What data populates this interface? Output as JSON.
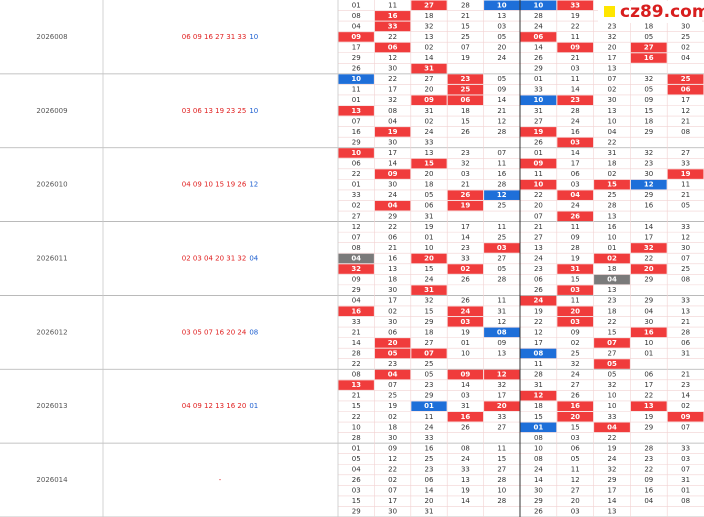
{
  "logo": "cz89.com",
  "draws": [
    {
      "issue": "2026008",
      "red": "06 09 16 27 31 33",
      "blue": "10",
      "rows": [
        [
          "01",
          "11",
          {
            "text": "27",
            "fill": "red"
          },
          "28",
          {
            "text": "10",
            "fill": "blue"
          },
          {
            "text": "10",
            "fill": "blue"
          },
          {
            "text": "33",
            "fill": "red"
          },
          null,
          null,
          null
        ],
        [
          "08",
          {
            "text": "16",
            "fill": "red"
          },
          "18",
          "21",
          "13",
          "28",
          "19",
          null,
          null,
          null
        ],
        [
          "04",
          {
            "text": "33",
            "fill": "red"
          },
          "32",
          "15",
          "03",
          "24",
          "22",
          "23",
          "18",
          "30"
        ],
        [
          {
            "text": "09",
            "fill": "red"
          },
          "22",
          "13",
          "25",
          "05",
          {
            "text": "06",
            "fill": "red"
          },
          "11",
          "32",
          "05",
          "25"
        ],
        [
          "17",
          {
            "text": "06",
            "fill": "red"
          },
          "02",
          "07",
          "20",
          "14",
          {
            "text": "09",
            "fill": "red"
          },
          "20",
          {
            "text": "27",
            "fill": "red"
          },
          "02"
        ],
        [
          "29",
          "12",
          "14",
          "19",
          "24",
          "26",
          "21",
          "17",
          {
            "text": "16",
            "fill": "red"
          },
          "04"
        ],
        [
          "26",
          "30",
          {
            "text": "31",
            "fill": "red"
          },
          null,
          null,
          "29",
          "03",
          "13",
          null,
          null
        ]
      ]
    },
    {
      "issue": "2026009",
      "red": "03 06 13 19 23 25",
      "blue": "10",
      "rows": [
        [
          {
            "text": "10",
            "fill": "blue"
          },
          "22",
          "27",
          {
            "text": "23",
            "fill": "red"
          },
          "05",
          "01",
          "11",
          "07",
          "32",
          {
            "text": "25",
            "fill": "red"
          }
        ],
        [
          "11",
          "17",
          "20",
          {
            "text": "25",
            "fill": "red"
          },
          "09",
          "33",
          "14",
          "02",
          "05",
          {
            "text": "06",
            "fill": "red"
          }
        ],
        [
          "01",
          "32",
          {
            "text": "09",
            "fill": "red"
          },
          {
            "text": "06",
            "fill": "red"
          },
          "14",
          {
            "text": "10",
            "fill": "blue"
          },
          {
            "text": "23",
            "fill": "red"
          },
          "30",
          "09",
          "17"
        ],
        [
          {
            "text": "13",
            "fill": "red"
          },
          "08",
          "31",
          "18",
          "21",
          "31",
          "28",
          "13",
          "15",
          "12"
        ],
        [
          "07",
          "04",
          "02",
          "15",
          "12",
          "27",
          "24",
          "10",
          "18",
          "21"
        ],
        [
          "16",
          {
            "text": "19",
            "fill": "red"
          },
          "24",
          "26",
          "28",
          {
            "text": "19",
            "fill": "red"
          },
          "16",
          "04",
          "29",
          "08"
        ],
        [
          "29",
          "30",
          "33",
          null,
          null,
          "26",
          {
            "text": "03",
            "fill": "red"
          },
          "22",
          null,
          null
        ]
      ]
    },
    {
      "issue": "2026010",
      "red": "04 09 10 15 19 26",
      "blue": "12",
      "rows": [
        [
          {
            "text": "10",
            "fill": "red"
          },
          "17",
          "13",
          "23",
          "07",
          "01",
          "14",
          "31",
          "32",
          "27"
        ],
        [
          "06",
          "14",
          {
            "text": "15",
            "fill": "red"
          },
          "32",
          "11",
          {
            "text": "09",
            "fill": "red"
          },
          "17",
          "18",
          "23",
          "33"
        ],
        [
          "22",
          {
            "text": "09",
            "fill": "red"
          },
          "20",
          "03",
          "16",
          "11",
          "06",
          "02",
          "30",
          {
            "text": "19",
            "fill": "red"
          }
        ],
        [
          "01",
          "30",
          "18",
          "21",
          "28",
          {
            "text": "10",
            "fill": "red"
          },
          "03",
          {
            "text": "15",
            "fill": "red"
          },
          {
            "text": "12",
            "fill": "blue"
          },
          "11"
        ],
        [
          "33",
          "24",
          "05",
          {
            "text": "26",
            "fill": "red"
          },
          {
            "text": "12",
            "fill": "blue"
          },
          "22",
          {
            "text": "04",
            "fill": "red"
          },
          "25",
          "29",
          "21"
        ],
        [
          "02",
          {
            "text": "04",
            "fill": "red"
          },
          "06",
          {
            "text": "19",
            "fill": "red"
          },
          "25",
          "20",
          "24",
          "28",
          "16",
          "05"
        ],
        [
          "27",
          "29",
          "31",
          null,
          null,
          "07",
          {
            "text": "26",
            "fill": "red"
          },
          "13",
          null,
          null
        ]
      ]
    },
    {
      "issue": "2026011",
      "red": "02 03 04 20 31 32",
      "blue": "04",
      "rows": [
        [
          "12",
          "22",
          "19",
          "17",
          "11",
          "21",
          "11",
          "16",
          "14",
          "33"
        ],
        [
          "07",
          "06",
          "01",
          "14",
          "25",
          "27",
          "09",
          "10",
          "17",
          "12"
        ],
        [
          "08",
          "21",
          "10",
          "23",
          {
            "text": "03",
            "fill": "red"
          },
          "13",
          "28",
          "01",
          {
            "text": "32",
            "fill": "red"
          },
          "30"
        ],
        [
          {
            "text": "04",
            "fill": "gray"
          },
          "16",
          {
            "text": "20",
            "fill": "red"
          },
          "33",
          "27",
          "24",
          "19",
          {
            "text": "02",
            "fill": "red"
          },
          "22",
          "07"
        ],
        [
          {
            "text": "32",
            "fill": "red"
          },
          "13",
          "15",
          {
            "text": "02",
            "fill": "red"
          },
          "05",
          "23",
          {
            "text": "31",
            "fill": "red"
          },
          "18",
          {
            "text": "20",
            "fill": "red"
          },
          "25"
        ],
        [
          "09",
          "18",
          "24",
          "26",
          "28",
          "06",
          "15",
          {
            "text": "04",
            "fill": "gray"
          },
          "29",
          "08"
        ],
        [
          "29",
          "30",
          {
            "text": "31",
            "fill": "red"
          },
          null,
          null,
          "26",
          {
            "text": "03",
            "fill": "red"
          },
          "13",
          null,
          null
        ]
      ]
    },
    {
      "issue": "2026012",
      "red": "03 05 07 16 20 24",
      "blue": "08",
      "rows": [
        [
          "04",
          "17",
          "32",
          "26",
          "11",
          {
            "text": "24",
            "fill": "red"
          },
          "11",
          "23",
          "29",
          "33"
        ],
        [
          {
            "text": "16",
            "fill": "red"
          },
          "02",
          "15",
          {
            "text": "24",
            "fill": "red"
          },
          "31",
          "19",
          {
            "text": "20",
            "fill": "red"
          },
          "18",
          "04",
          "13"
        ],
        [
          "33",
          "30",
          "29",
          {
            "text": "03",
            "fill": "red"
          },
          "12",
          "22",
          {
            "text": "03",
            "fill": "red"
          },
          "22",
          "30",
          "21"
        ],
        [
          "21",
          "06",
          "18",
          "19",
          {
            "text": "08",
            "fill": "blue"
          },
          "12",
          "09",
          "15",
          {
            "text": "16",
            "fill": "red"
          },
          "28"
        ],
        [
          "14",
          {
            "text": "20",
            "fill": "red"
          },
          "27",
          "01",
          "09",
          "17",
          "02",
          {
            "text": "07",
            "fill": "red"
          },
          "10",
          "06"
        ],
        [
          "28",
          {
            "text": "05",
            "fill": "red"
          },
          {
            "text": "07",
            "fill": "red"
          },
          "10",
          "13",
          {
            "text": "08",
            "fill": "blue"
          },
          "25",
          "27",
          "01",
          "31"
        ],
        [
          "22",
          "23",
          "25",
          null,
          null,
          "11",
          "32",
          {
            "text": "05",
            "fill": "red"
          },
          null,
          null
        ]
      ]
    },
    {
      "issue": "2026013",
      "red": "04 09 12 13 16 20",
      "blue": "01",
      "rows": [
        [
          "08",
          {
            "text": "04",
            "fill": "red"
          },
          "05",
          {
            "text": "09",
            "fill": "red"
          },
          {
            "text": "12",
            "fill": "red"
          },
          "28",
          "24",
          "05",
          "06",
          "21"
        ],
        [
          {
            "text": "13",
            "fill": "red"
          },
          "07",
          "23",
          "14",
          "32",
          "31",
          "27",
          "32",
          "17",
          "23"
        ],
        [
          "21",
          "25",
          "29",
          "03",
          "17",
          {
            "text": "12",
            "fill": "red"
          },
          "26",
          "10",
          "22",
          "14"
        ],
        [
          "15",
          "19",
          {
            "text": "01",
            "fill": "blue"
          },
          "31",
          {
            "text": "20",
            "fill": "red"
          },
          "18",
          {
            "text": "16",
            "fill": "red"
          },
          "10",
          {
            "text": "13",
            "fill": "red"
          },
          "02"
        ],
        [
          "22",
          "02",
          "11",
          {
            "text": "16",
            "fill": "red"
          },
          "33",
          "15",
          {
            "text": "20",
            "fill": "red"
          },
          "33",
          "19",
          {
            "text": "09",
            "fill": "red"
          }
        ],
        [
          "10",
          "18",
          "24",
          "26",
          "27",
          {
            "text": "01",
            "fill": "blue"
          },
          "15",
          {
            "text": "04",
            "fill": "red"
          },
          "29",
          "07"
        ],
        [
          "28",
          "30",
          "33",
          null,
          null,
          "08",
          "03",
          "22",
          null,
          null
        ]
      ]
    },
    {
      "issue": "2026014",
      "red": "-",
      "rows": [
        [
          "01",
          "09",
          "16",
          "08",
          "11",
          "10",
          "06",
          "19",
          "28",
          "33"
        ],
        [
          "05",
          "12",
          "25",
          "24",
          "15",
          "08",
          "05",
          "24",
          "23",
          "03"
        ],
        [
          "04",
          "22",
          "23",
          "33",
          "27",
          "24",
          "11",
          "32",
          "22",
          "07"
        ],
        [
          "26",
          "02",
          "06",
          "13",
          "28",
          "14",
          "12",
          "29",
          "09",
          "31"
        ],
        [
          "03",
          "07",
          "14",
          "19",
          "10",
          "30",
          "27",
          "17",
          "16",
          "01"
        ],
        [
          "15",
          "17",
          "20",
          "14",
          "28",
          "29",
          "20",
          "14",
          "04",
          "08"
        ],
        [
          "29",
          "30",
          "31",
          null,
          null,
          "26",
          "03",
          "13",
          null,
          null
        ]
      ]
    }
  ]
}
